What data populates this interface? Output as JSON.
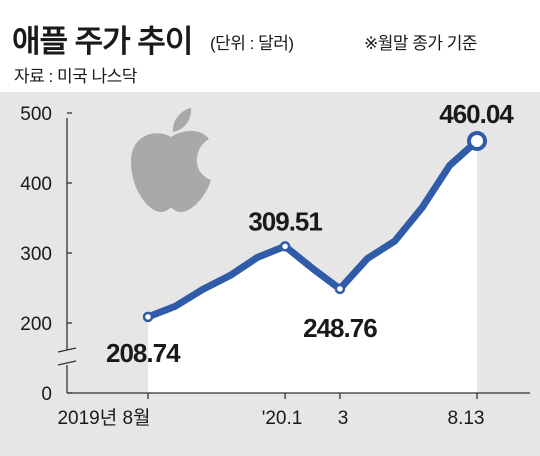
{
  "header": {
    "title": "애플 주가 추이",
    "unit": "(단위 : 달러)",
    "note": "※월말 종가 기준",
    "source": "자료 : 미국 나스닥"
  },
  "decor": {
    "logo_icon": "apple-logo-icon"
  },
  "colors": {
    "line": "#2f5ba8",
    "area": "#ffffff",
    "background": "#e6e6e6",
    "text": "#1a1a1a"
  },
  "chart_data": {
    "type": "area",
    "y_ticks": [
      "0",
      "200",
      "300",
      "400",
      "500"
    ],
    "ylim": [
      0,
      500
    ],
    "axis_break": "between 0 and 200",
    "x_tick_labels": [
      "2019년 8월",
      "'20.1",
      "3",
      "8.13"
    ],
    "series": [
      {
        "values": [
          208.74,
          224,
          248,
          268,
          294,
          309.51,
          278,
          248.76,
          292,
          317,
          365,
          425,
          460.04
        ]
      }
    ],
    "data_labels": [
      {
        "index": 0,
        "text": "208.74"
      },
      {
        "index": 5,
        "text": "309.51"
      },
      {
        "index": 7,
        "text": "248.76"
      },
      {
        "index": 12,
        "text": "460.04"
      }
    ],
    "grid": false,
    "legend": "none"
  }
}
